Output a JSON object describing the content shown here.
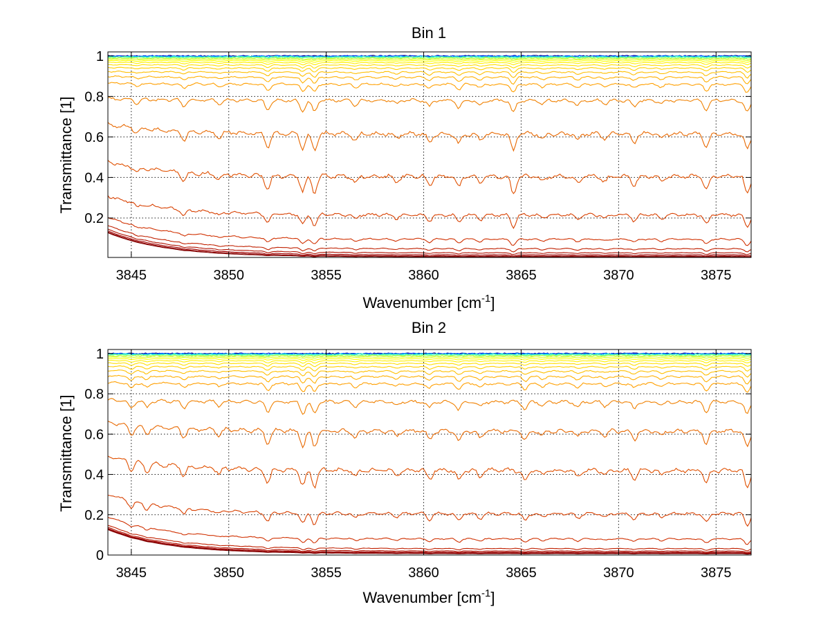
{
  "chart_data": [
    {
      "type": "line",
      "title": "Bin 1",
      "xlabel": "Wavenumber [cm",
      "xlabel_sup": "-1",
      "xlabel_end": "]",
      "ylabel": "Transmittance [1]",
      "xlim": [
        3843.8,
        3876.8
      ],
      "ylim": [
        0.005,
        1.02
      ],
      "xticks": [
        3845,
        3850,
        3855,
        3860,
        3865,
        3870,
        3875
      ],
      "yticks": [
        0.2,
        0.4,
        0.6,
        0.8,
        1
      ],
      "ytick_labels": [
        "0.2",
        "0.4",
        "0.6",
        "0.8",
        "1"
      ],
      "grid": true,
      "series_baselines": [
        1.0,
        0.999,
        0.997,
        0.995,
        0.992,
        0.988,
        0.983,
        0.976,
        0.967,
        0.955,
        0.94,
        0.92,
        0.895,
        0.86,
        0.78,
        0.615,
        0.405,
        0.215,
        0.095,
        0.048,
        0.028,
        0.018,
        0.012,
        0.008
      ],
      "series_colors": [
        "#00008f",
        "#0040ff",
        "#00bfff",
        "#40ffbf",
        "#80ff80",
        "#bfff40",
        "#e0ff20",
        "#ffff00",
        "#ffef00",
        "#ffdf00",
        "#ffcf00",
        "#ffbf00",
        "#ffaf00",
        "#ff9f00",
        "#f08000",
        "#e86800",
        "#e05000",
        "#d84000",
        "#d03000",
        "#c02000",
        "#b01000",
        "#a00000",
        "#900000",
        "#800000"
      ],
      "absorption_lines": [
        3845.3,
        3847.7,
        3849.5,
        3852.0,
        3853.8,
        3854.4,
        3856.5,
        3858.6,
        3860.3,
        3861.8,
        3862.9,
        3864.6,
        3866.1,
        3867.9,
        3869.3,
        3870.8,
        3872.2,
        3874.5,
        3876.6
      ],
      "line_depths": [
        0.3,
        0.5,
        0.3,
        0.8,
        0.9,
        0.95,
        0.4,
        0.3,
        0.5,
        0.6,
        0.4,
        1.0,
        0.3,
        0.4,
        0.3,
        0.5,
        0.3,
        0.8,
        1.0
      ]
    },
    {
      "type": "line",
      "title": "Bin 2",
      "xlabel": "Wavenumber [cm",
      "xlabel_sup": "-1",
      "xlabel_end": "]",
      "ylabel": "Transmittance [1]",
      "xlim": [
        3843.8,
        3876.8
      ],
      "ylim": [
        0,
        1.02
      ],
      "xticks": [
        3845,
        3850,
        3855,
        3860,
        3865,
        3870,
        3875
      ],
      "yticks": [
        0,
        0.2,
        0.4,
        0.6,
        0.8,
        1
      ],
      "ytick_labels": [
        "0",
        "0.2",
        "0.4",
        "0.6",
        "0.8",
        "1"
      ],
      "grid": true,
      "series_baselines": [
        1.0,
        0.999,
        0.997,
        0.995,
        0.992,
        0.988,
        0.982,
        0.974,
        0.964,
        0.951,
        0.934,
        0.912,
        0.885,
        0.85,
        0.76,
        0.615,
        0.42,
        0.205,
        0.08,
        0.032,
        0.02,
        0.014,
        0.01,
        0.007
      ],
      "series_colors": [
        "#00008f",
        "#0040ff",
        "#00bfff",
        "#40ffbf",
        "#80ff80",
        "#bfff40",
        "#e0ff20",
        "#ffff00",
        "#ffef00",
        "#ffdf00",
        "#ffcf00",
        "#ffbf00",
        "#ffaf00",
        "#ff9f00",
        "#f08000",
        "#e86800",
        "#e05000",
        "#d84000",
        "#d03000",
        "#c02000",
        "#b01000",
        "#a00000",
        "#900000",
        "#800000"
      ],
      "absorption_lines": [
        3845.0,
        3845.8,
        3847.7,
        3849.5,
        3852.0,
        3853.8,
        3854.4,
        3856.5,
        3858.6,
        3860.3,
        3861.8,
        3862.9,
        3865.2,
        3866.1,
        3867.9,
        3869.3,
        3870.8,
        3872.2,
        3874.5,
        3876.6
      ],
      "line_depths": [
        0.6,
        0.5,
        0.5,
        0.3,
        0.8,
        0.9,
        0.95,
        0.4,
        0.3,
        0.5,
        0.6,
        0.4,
        0.6,
        0.3,
        0.4,
        0.3,
        0.5,
        0.3,
        0.8,
        1.0
      ]
    }
  ]
}
